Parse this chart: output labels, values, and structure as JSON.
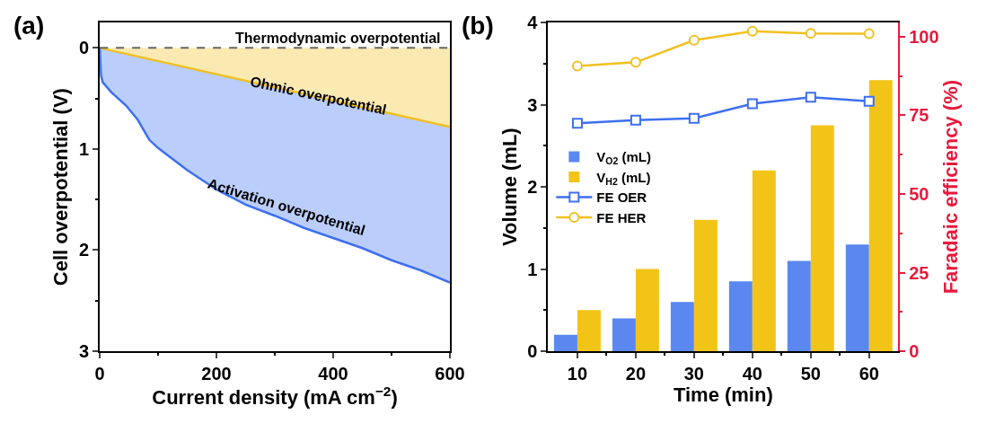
{
  "chart_data": [
    {
      "type": "area",
      "title": "(a)",
      "xlabel": "Current density (mA cm$^{−2}$)",
      "ylabel": "Cell overpotential (V)",
      "xlim": [
        0,
        600
      ],
      "xticks": [
        0,
        200,
        400,
        600
      ],
      "ylim": [
        3,
        -0.25
      ],
      "yticks": [
        0,
        1,
        2,
        3
      ],
      "legend": false,
      "line_style": "solid",
      "marker": "none",
      "ref_lines": [
        {
          "axis": "y",
          "value": 0,
          "label": "Thermodynamic overpotential",
          "color": "#666666",
          "line_style": "dashed"
        }
      ],
      "series": [
        {
          "color": "#f0c020",
          "x": [
            0,
            600
          ],
          "values": [
            0,
            0.78
          ]
        },
        {
          "color": "#3d6ff0",
          "x": [
            0,
            2,
            5,
            20,
            45,
            65,
            75,
            85,
            100,
            150,
            200,
            250,
            300,
            350,
            400,
            450,
            500,
            550,
            600
          ],
          "values": [
            0,
            0.27,
            0.34,
            0.44,
            0.57,
            0.71,
            0.81,
            0.91,
            0.99,
            1.21,
            1.4,
            1.55,
            1.66,
            1.78,
            1.88,
            1.98,
            2.1,
            2.2,
            2.32
          ]
        }
      ],
      "annotations": [
        "Ohmic overpotential",
        "Activation overpotential"
      ]
    },
    {
      "type": "bar",
      "title": "(b)",
      "xlabel": "Time (min)",
      "ylabel": "Volume (mL)",
      "y2label": "Faradaic efficiency (%)",
      "categories": [
        "10",
        "20",
        "30",
        "40",
        "50",
        "60"
      ],
      "ylim": [
        0,
        4
      ],
      "yticks": [
        0,
        1,
        2,
        3,
        4
      ],
      "y2lim": [
        0,
        104.5
      ],
      "y2ticks": [
        0,
        25,
        50,
        75,
        100
      ],
      "legend": "left",
      "series": [
        {
          "name": "V$_{O2}$ (mL)",
          "color": "#5a88f0",
          "values": [
            0.2,
            0.4,
            0.6,
            0.85,
            1.1,
            1.3
          ]
        },
        {
          "name": "V$_{H2}$ (mL)",
          "color": "#f2c417",
          "values": [
            0.5,
            1.0,
            1.6,
            2.2,
            2.75,
            3.3
          ]
        },
        {
          "name": "FE OER",
          "type": "line",
          "axis": "y2",
          "marker": "square",
          "color": "#3d6ff0",
          "values": [
            72.5,
            73.5,
            74.1,
            78.7,
            80.8,
            79.5
          ]
        },
        {
          "name": "FE HER",
          "type": "line",
          "axis": "y2",
          "marker": "circle",
          "color": "#f0c020",
          "values": [
            90.7,
            91.9,
            98.9,
            101.8,
            101.1,
            101.0
          ]
        }
      ]
    }
  ]
}
